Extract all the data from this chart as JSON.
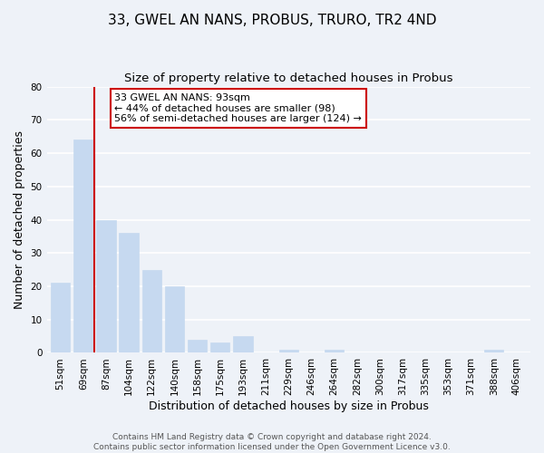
{
  "title": "33, GWEL AN NANS, PROBUS, TRURO, TR2 4ND",
  "subtitle": "Size of property relative to detached houses in Probus",
  "xlabel": "Distribution of detached houses by size in Probus",
  "ylabel": "Number of detached properties",
  "bar_labels": [
    "51sqm",
    "69sqm",
    "87sqm",
    "104sqm",
    "122sqm",
    "140sqm",
    "158sqm",
    "175sqm",
    "193sqm",
    "211sqm",
    "229sqm",
    "246sqm",
    "264sqm",
    "282sqm",
    "300sqm",
    "317sqm",
    "335sqm",
    "353sqm",
    "371sqm",
    "388sqm",
    "406sqm"
  ],
  "bar_values": [
    21,
    64,
    40,
    36,
    25,
    20,
    4,
    3,
    5,
    0,
    1,
    0,
    1,
    0,
    0,
    0,
    0,
    0,
    0,
    1,
    0
  ],
  "bar_color": "#c6d9f0",
  "bar_edge_color": "#c6d9f0",
  "vline_color": "#cc0000",
  "ylim": [
    0,
    80
  ],
  "yticks": [
    0,
    10,
    20,
    30,
    40,
    50,
    60,
    70,
    80
  ],
  "annotation_title": "33 GWEL AN NANS: 93sqm",
  "annotation_line1": "← 44% of detached houses are smaller (98)",
  "annotation_line2": "56% of semi-detached houses are larger (124) →",
  "annotation_box_color": "#ffffff",
  "annotation_box_edge": "#cc0000",
  "footer_line1": "Contains HM Land Registry data © Crown copyright and database right 2024.",
  "footer_line2": "Contains public sector information licensed under the Open Government Licence v3.0.",
  "background_color": "#eef2f8",
  "grid_color": "#ffffff",
  "title_fontsize": 11,
  "subtitle_fontsize": 9.5,
  "axis_label_fontsize": 9,
  "tick_fontsize": 7.5,
  "annotation_fontsize": 8,
  "footer_fontsize": 6.5
}
